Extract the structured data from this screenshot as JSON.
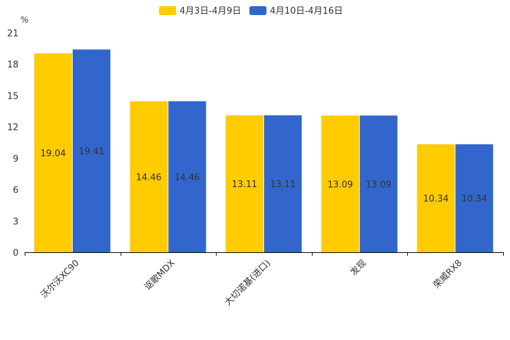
{
  "chart_data": {
    "type": "bar",
    "title": "",
    "xlabel": "",
    "ylabel": "%",
    "ylim": [
      0,
      21
    ],
    "yticks": [
      0,
      3,
      6,
      9,
      12,
      15,
      18,
      21
    ],
    "categories": [
      "沃尔沃XC90",
      "讴歌MDX",
      "大切诺基(进口)",
      "发现",
      "荣威RX8"
    ],
    "series": [
      {
        "name": "4月3日-4月9日",
        "color": "#FFCC00",
        "values": [
          19.04,
          14.46,
          13.11,
          13.09,
          10.34
        ]
      },
      {
        "name": "4月10日-4月16日",
        "color": "#3366CC",
        "values": [
          19.41,
          14.46,
          13.11,
          13.09,
          10.34
        ]
      }
    ],
    "legend_position": "top-center",
    "grid": false
  }
}
